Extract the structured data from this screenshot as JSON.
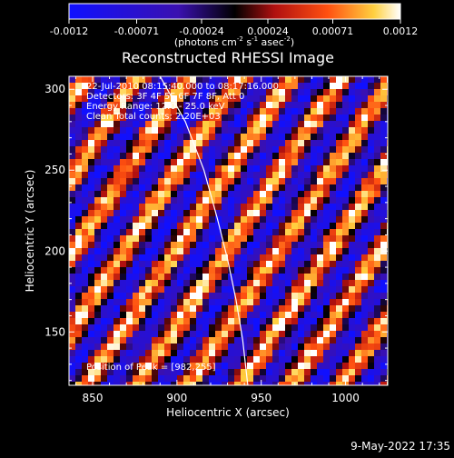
{
  "colorbar": {
    "tick_labels": [
      "-0.0012",
      "-0.00071",
      "-0.00024",
      "0.00024",
      "0.00071",
      "0.0012"
    ],
    "tick_values": [
      -0.0012,
      -0.00071,
      -0.00024,
      0.00024,
      0.00071,
      0.0012
    ],
    "range": [
      -0.0012,
      0.0012
    ],
    "unit_label": {
      "pre": "(photons cm",
      "sup1": "-2",
      "mid1": " s",
      "sup2": "-1",
      "mid2": " asec",
      "sup3": "-2",
      "post": ")"
    },
    "colors": [
      "#1010ff",
      "#4010c0",
      "#000000",
      "#c01010",
      "#ff6010",
      "#ffd040",
      "#ffffff"
    ]
  },
  "chart_data": {
    "type": "heatmap",
    "title": "Reconstructed RHESSI Image",
    "xlabel": "Heliocentric X (arcsec)",
    "ylabel": "Heliocentric Y (arcsec)",
    "xlim": [
      836,
      1025
    ],
    "ylim": [
      117,
      308
    ],
    "x_ticks": [
      850,
      900,
      950,
      1000
    ],
    "y_ticks": [
      150,
      200,
      250,
      300
    ],
    "x_tick_labels": [
      "850",
      "900",
      "950",
      "1000"
    ],
    "y_tick_labels": [
      "150",
      "200",
      "250",
      "300"
    ],
    "annotations": [
      "22-Jul-2010 08:15:40.000 to 08:17:16.000",
      "Detectors: 3F 4F 5F 6F 7F 8F, Att 0",
      "Energy Range: 12.0 - 25.0 keV",
      "Clean     Total counts: 2.20E+03"
    ],
    "peak_label": "Position of Peak = [982,255]",
    "peak": [
      982,
      255
    ],
    "limb_curve": [
      [
        890,
        308
      ],
      [
        905,
        280
      ],
      [
        916,
        250
      ],
      [
        924,
        220
      ],
      [
        930,
        195
      ],
      [
        935,
        170
      ],
      [
        939,
        145
      ],
      [
        942,
        117
      ]
    ],
    "pattern": {
      "kind": "diagonal fringes",
      "amplitude_range": [
        -0.0012,
        0.0012
      ]
    }
  },
  "footer": {
    "date": "9-May-2022 17:35"
  }
}
